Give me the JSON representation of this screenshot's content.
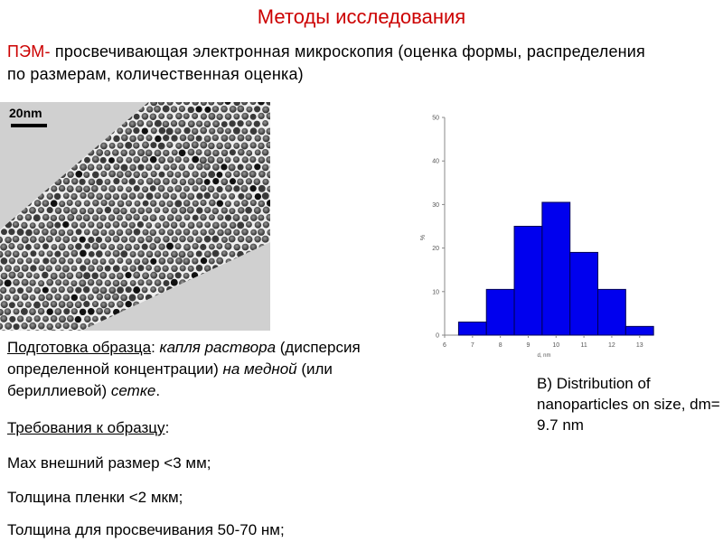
{
  "title": "Методы исследования",
  "intro": {
    "abbr": "ПЭМ-",
    "text": " просвечивающая электронная микроскопия (оценка формы, распределения по размерам, количественная оценка)"
  },
  "image": {
    "scale_label": "20nm"
  },
  "chart_data": {
    "type": "bar",
    "title": "",
    "xlabel": "d, nm",
    "ylabel": "%",
    "x_ticks": [
      "6",
      "7",
      "8",
      "9",
      "10",
      "11",
      "12",
      "13"
    ],
    "y_ticks": [
      "0",
      "10",
      "20",
      "30",
      "40",
      "50"
    ],
    "xlim": [
      6,
      13.3
    ],
    "ylim": [
      0,
      50
    ],
    "bins": [
      {
        "from": 6.5,
        "to": 7.5,
        "value": 3
      },
      {
        "from": 7.5,
        "to": 8.5,
        "value": 10.5
      },
      {
        "from": 8.5,
        "to": 9.5,
        "value": 25
      },
      {
        "from": 9.5,
        "to": 10.5,
        "value": 30.5
      },
      {
        "from": 10.5,
        "to": 11.5,
        "value": 19
      },
      {
        "from": 11.5,
        "to": 12.5,
        "value": 10.5
      },
      {
        "from": 12.5,
        "to": 13.5,
        "value": 2
      }
    ],
    "bar_color": "#0000ee"
  },
  "caption": " B) Distribution of nanoparticles on size, dm= 9.7 nm",
  "preparation": {
    "label": "Подготовка образца",
    "colon": ": ",
    "italic1": "капля раствора",
    "normal1": " (дисперсия определенной концентрации) ",
    "italic2": "на медной",
    "normal2": " (или бериллиевой) ",
    "italic3": "сетке",
    "end": "."
  },
  "requirements": {
    "title": "Требования к образцу",
    "title_colon": ":",
    "items": [
      "Max внешний размер <3 мм;",
      "Толщина пленки <2 мкм;",
      "Толщина для просвечивания 50-70 нм;"
    ]
  }
}
